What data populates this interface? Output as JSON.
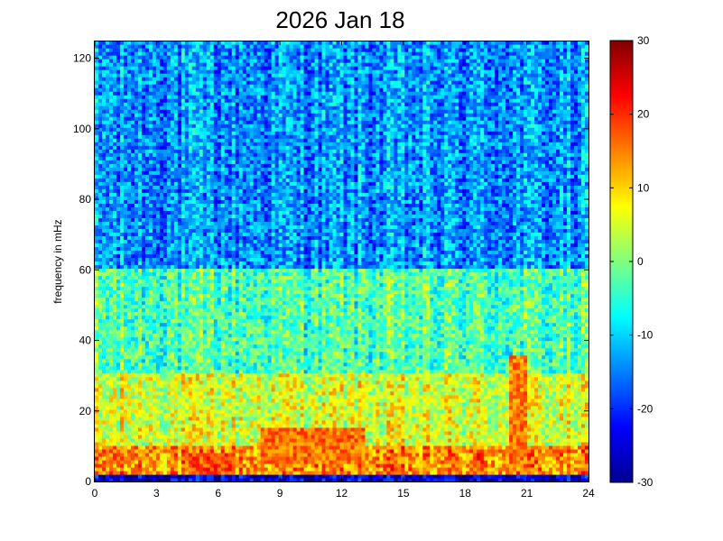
{
  "chart_data": {
    "type": "heatmap",
    "title": "2026 Jan 18",
    "xlabel": "",
    "ylabel": "frequency in mHz",
    "xlim": [
      0,
      24
    ],
    "ylim": [
      0,
      125
    ],
    "xticks": [
      0,
      3,
      6,
      9,
      12,
      15,
      18,
      21,
      24
    ],
    "yticks": [
      0,
      20,
      40,
      60,
      80,
      100,
      120
    ],
    "colorbar": {
      "colormap": "jet",
      "clim": [
        -30,
        30
      ],
      "ticks": [
        -30,
        -20,
        -10,
        0,
        10,
        20,
        30
      ]
    },
    "grid": false,
    "value_summary": [
      {
        "frequency_band_mHz": [
          0,
          2
        ],
        "typical_value": -25
      },
      {
        "frequency_band_mHz": [
          2,
          10
        ],
        "typical_value": 14
      },
      {
        "frequency_band_mHz": [
          10,
          30
        ],
        "typical_value": 5
      },
      {
        "frequency_band_mHz": [
          30,
          60
        ],
        "typical_value": -3
      },
      {
        "frequency_band_mHz": [
          60,
          125
        ],
        "typical_value": -14
      }
    ],
    "features": [
      {
        "time_h": [
          4.5,
          6.5
        ],
        "frequency_mHz": [
          2,
          8
        ],
        "typical_value": 18
      },
      {
        "time_h": [
          8,
          13
        ],
        "frequency_mHz": [
          5,
          15
        ],
        "typical_value": 16
      },
      {
        "time_h": [
          20,
          21
        ],
        "frequency_mHz": [
          5,
          35
        ],
        "typical_value": 15
      }
    ]
  }
}
